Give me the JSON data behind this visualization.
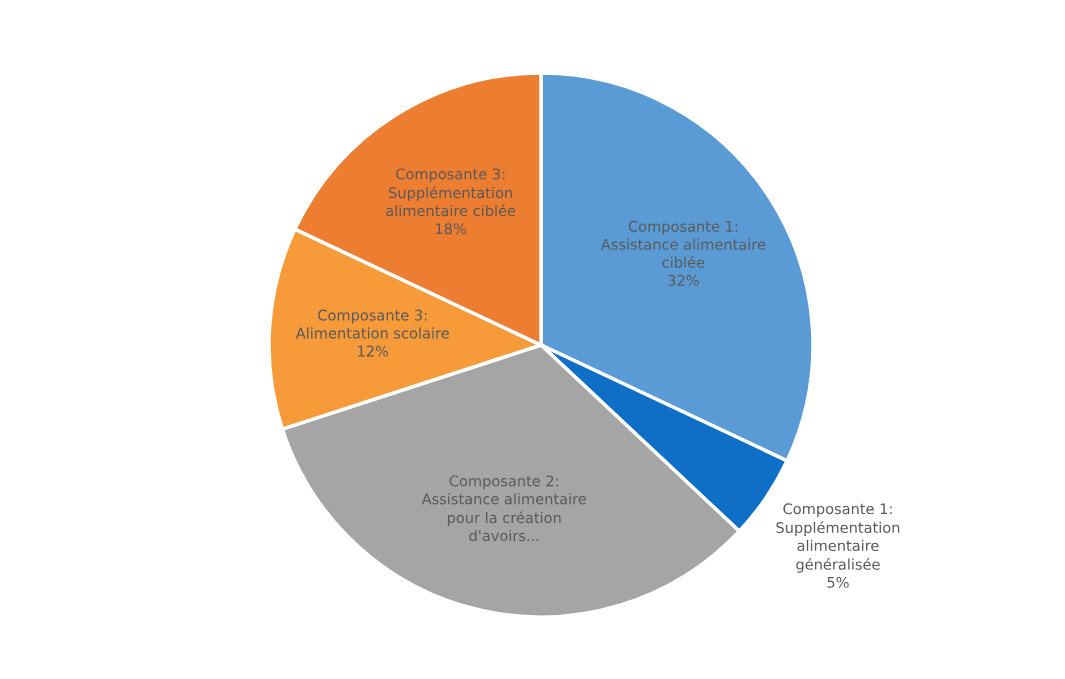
{
  "chart_data": {
    "type": "pie",
    "categories": [
      "Composante 1:\nAssistance alimentaire\nciblée",
      "Composante 1:\nSupplémentation\nalimentaire\ngénéralisée",
      "Composante 2:\nAssistance alimentaire\npour la création\nd'avoirs...",
      "Composante 3:\nAlimentation scolaire",
      "Composante 3:\nSupplémentation\nalimentaire ciblée"
    ],
    "values": [
      32,
      5,
      33,
      12,
      18
    ],
    "value_labels": [
      "32%",
      "5%",
      null,
      "12%",
      "18%"
    ],
    "colors": [
      "#5b9bd5",
      "#0f6fc6",
      "#a5a5a5",
      "#f79a3a",
      "#ed7d31"
    ],
    "legend": false
  }
}
